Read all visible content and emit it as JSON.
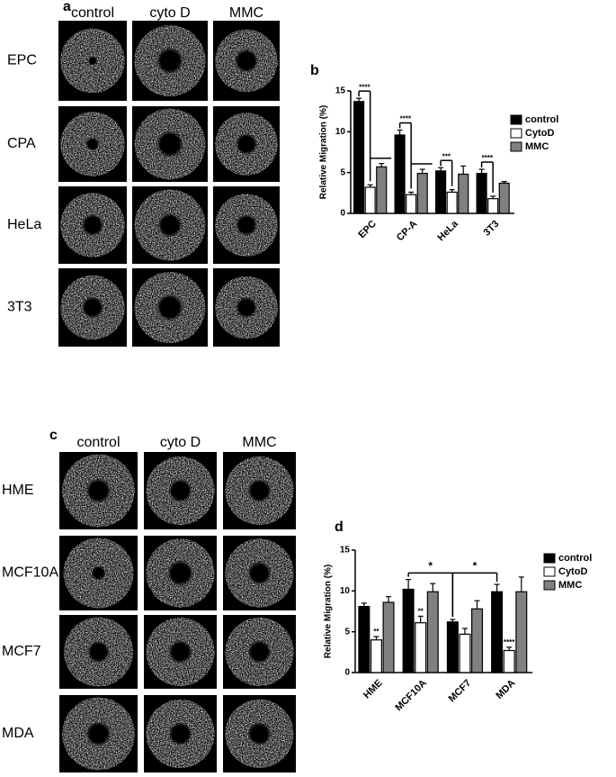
{
  "panels": [
    {
      "letter": "a",
      "columns": [
        "control",
        "cyto D",
        "MMC"
      ],
      "rows": [
        "EPC",
        "CPA",
        "HeLa",
        "3T3"
      ]
    },
    {
      "letter": "c",
      "columns": [
        "control",
        "cyto D",
        "MMC"
      ],
      "rows": [
        "HME",
        "MCF10A",
        "MCF7",
        "MDA"
      ]
    }
  ],
  "chart_data": [
    {
      "type": "bar",
      "label": "b",
      "ylabel": "Relative Migration (%)",
      "categories": [
        "EPC",
        "CP-A",
        "HeLa",
        "3T3"
      ],
      "series": [
        {
          "name": "control",
          "color": "#000000",
          "values": [
            13.7,
            9.6,
            5.2,
            4.9
          ],
          "errors": [
            0.4,
            0.6,
            0.4,
            0.5
          ]
        },
        {
          "name": "CytoD",
          "color": "#ffffff",
          "values": [
            3.2,
            2.3,
            2.6,
            1.8
          ],
          "errors": [
            0.3,
            0.3,
            0.3,
            0.3
          ]
        },
        {
          "name": "MMC",
          "color": "#808080",
          "values": [
            5.7,
            4.9,
            4.8,
            3.7
          ],
          "errors": [
            0.4,
            0.5,
            1.0,
            0.2
          ]
        }
      ],
      "ylim": [
        0,
        15
      ],
      "yticks": [
        0,
        5,
        10,
        15
      ],
      "annotations": [
        "****",
        "****",
        "***",
        "****"
      ]
    },
    {
      "type": "bar",
      "label": "d",
      "ylabel": "Relative Migration (%)",
      "categories": [
        "HME",
        "MCF10A",
        "MCF7",
        "MDA"
      ],
      "series": [
        {
          "name": "control",
          "color": "#000000",
          "values": [
            8.1,
            10.2,
            6.2,
            9.9
          ],
          "errors": [
            0.4,
            1.2,
            0.3,
            0.9
          ]
        },
        {
          "name": "CytoD",
          "color": "#ffffff",
          "values": [
            4.0,
            6.1,
            4.7,
            2.7
          ],
          "errors": [
            0.4,
            0.8,
            0.7,
            0.4
          ]
        },
        {
          "name": "MMC",
          "color": "#808080",
          "values": [
            8.6,
            9.9,
            7.8,
            9.9
          ],
          "errors": [
            0.7,
            1.0,
            1.0,
            1.8
          ]
        }
      ],
      "ylim": [
        0,
        15
      ],
      "yticks": [
        0,
        5,
        10,
        15
      ],
      "annotations": [
        "**",
        "**",
        "****",
        "*",
        "*"
      ]
    }
  ]
}
